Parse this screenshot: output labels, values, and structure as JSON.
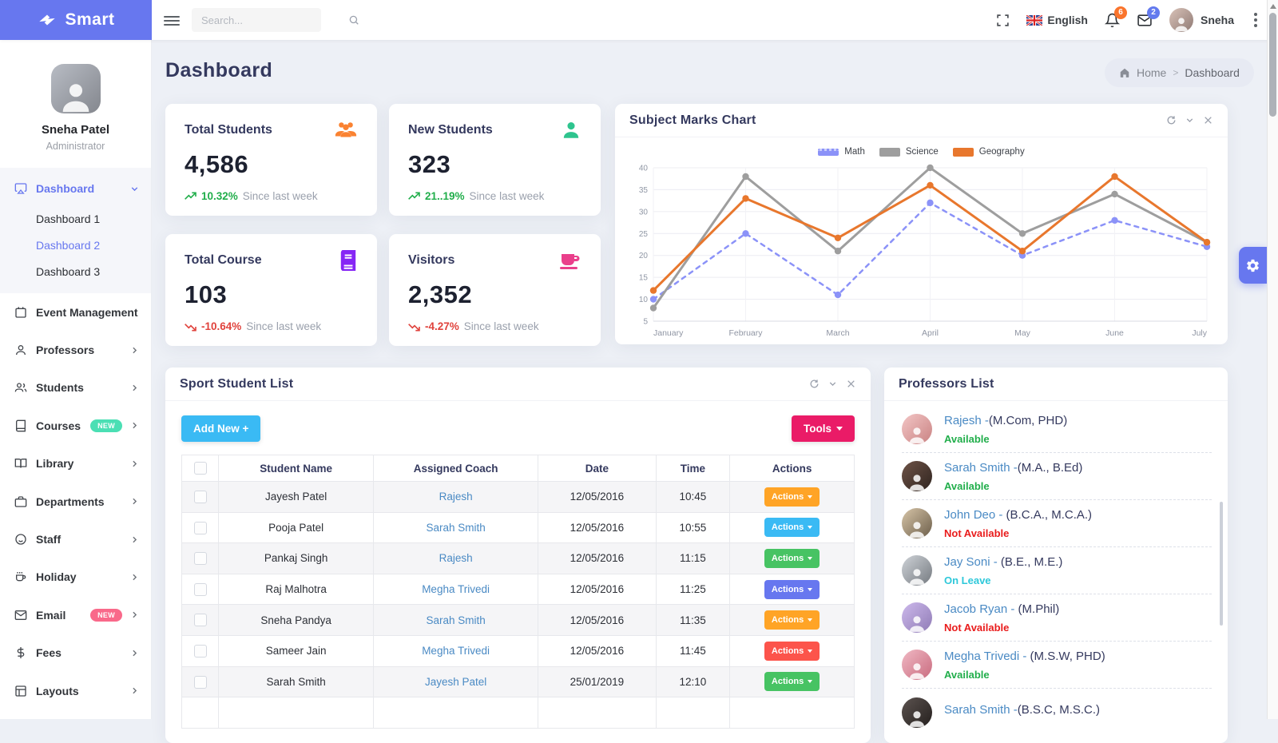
{
  "topbar": {
    "brand": "Smart",
    "search_placeholder": "Search...",
    "language": "English",
    "notif_count": "6",
    "notif_badge_color": "#fa742c",
    "message_count": "2",
    "message_badge_color": "#637aee",
    "user_name": "Sneha"
  },
  "sidebar": {
    "profile": {
      "name": "Sneha Patel",
      "role": "Administrator"
    },
    "dashboard_group": {
      "label": "Dashboard",
      "children": [
        {
          "label": "Dashboard 1",
          "active": false
        },
        {
          "label": "Dashboard 2",
          "active": true
        },
        {
          "label": "Dashboard 3",
          "active": false
        }
      ]
    },
    "items": [
      {
        "label": "Event Management",
        "icon": "calendar-icon",
        "chevron": false
      },
      {
        "label": "Professors",
        "icon": "person-icon",
        "chevron": true
      },
      {
        "label": "Students",
        "icon": "people-icon",
        "chevron": true
      },
      {
        "label": "Courses",
        "icon": "book-icon",
        "chevron": true,
        "badge": "NEW",
        "badge_color": "#4bdfb4"
      },
      {
        "label": "Library",
        "icon": "open-book-icon",
        "chevron": true
      },
      {
        "label": "Departments",
        "icon": "briefcase-icon",
        "chevron": true
      },
      {
        "label": "Staff",
        "icon": "smiley-icon",
        "chevron": true
      },
      {
        "label": "Holiday",
        "icon": "coffee-icon",
        "chevron": true
      },
      {
        "label": "Email",
        "icon": "envelope-icon",
        "chevron": true,
        "badge": "NEW",
        "badge_color": "#f9698a"
      },
      {
        "label": "Fees",
        "icon": "dollar-icon",
        "chevron": true
      },
      {
        "label": "Layouts",
        "icon": "layout-icon",
        "chevron": true
      }
    ]
  },
  "page": {
    "title": "Dashboard",
    "breadcrumb_home": "Home",
    "breadcrumb_current": "Dashboard"
  },
  "stats": [
    {
      "label": "Total Students",
      "value": "4,586",
      "trend": "10.32%",
      "suffix": "Since last week",
      "direction": "up",
      "icon": "users-group-icon",
      "icon_color": "#fa8231",
      "trend_color": "#21ae4b"
    },
    {
      "label": "New Students",
      "value": "323",
      "trend": "21..19%",
      "suffix": "Since last week",
      "direction": "up",
      "icon": "student-icon",
      "icon_color": "#2ec48e",
      "trend_color": "#21ae4b"
    },
    {
      "label": "Total Course",
      "value": "103",
      "trend": "-10.64%",
      "suffix": "Since last week",
      "direction": "down",
      "icon": "course-book-icon",
      "icon_color": "#8626f5",
      "trend_color": "#e0423c"
    },
    {
      "label": "Visitors",
      "value": "2,352",
      "trend": "-4.27%",
      "suffix": "Since last week",
      "direction": "down",
      "icon": "cup-icon",
      "icon_color": "#ea3f8b",
      "trend_color": "#e0423c"
    }
  ],
  "chart_card": {
    "title": "Subject Marks Chart"
  },
  "chart_data": {
    "type": "line",
    "title": "Subject Marks Chart",
    "x": [
      "January",
      "February",
      "March",
      "April",
      "May",
      "June",
      "July"
    ],
    "ylim": [
      5,
      40
    ],
    "ytick_step": 5,
    "grid": true,
    "legend_position": "top-center",
    "series": [
      {
        "name": "Math",
        "color": "#8b92f8",
        "dash": "5 6",
        "width": 2.5,
        "values": [
          10,
          25,
          11,
          32,
          20,
          28,
          22
        ]
      },
      {
        "name": "Science",
        "color": "#9e9e9e",
        "dash": "",
        "width": 3,
        "values": [
          8,
          38,
          21,
          40,
          25,
          34,
          23
        ]
      },
      {
        "name": "Geography",
        "color": "#e8772d",
        "dash": "",
        "width": 3,
        "values": [
          12,
          33,
          24,
          36,
          21,
          38,
          23
        ]
      }
    ]
  },
  "sport_table": {
    "title": "Sport Student List",
    "add_button": "Add New +",
    "add_button_color": "#3abaf4",
    "tools_button": "Tools",
    "tools_button_color": "#ea1b67",
    "columns": [
      "Student Name",
      "Assigned Coach",
      "Date",
      "Time",
      "Actions"
    ],
    "action_label": "Actions",
    "rows": [
      {
        "name": "Jayesh Patel",
        "coach": "Rajesh",
        "date": "12/05/2016",
        "time": "10:45",
        "action_color": "#ffa426"
      },
      {
        "name": "Pooja Patel",
        "coach": "Sarah Smith",
        "date": "12/05/2016",
        "time": "10:55",
        "action_color": "#3abaf4"
      },
      {
        "name": "Pankaj Singh",
        "coach": "Rajesh",
        "date": "12/05/2016",
        "time": "11:15",
        "action_color": "#47c363"
      },
      {
        "name": "Raj Malhotra",
        "coach": "Megha Trivedi",
        "date": "12/05/2016",
        "time": "11:25",
        "action_color": "#6777ef"
      },
      {
        "name": "Sneha Pandya",
        "coach": "Sarah Smith",
        "date": "12/05/2016",
        "time": "11:35",
        "action_color": "#ffa426"
      },
      {
        "name": "Sameer Jain",
        "coach": "Megha Trivedi",
        "date": "12/05/2016",
        "time": "11:45",
        "action_color": "#fc544b"
      },
      {
        "name": "Sarah Smith",
        "coach": "Jayesh Patel",
        "date": "25/01/2019",
        "time": "12:10",
        "action_color": "#47c363"
      }
    ]
  },
  "professors": {
    "title": "Professors List",
    "items": [
      {
        "name": "Rajesh -",
        "qual": "(M.Com, PHD)",
        "status": "Available",
        "status_color": "#21ae4b"
      },
      {
        "name": "Sarah Smith -",
        "qual": "(M.A., B.Ed)",
        "status": "Available",
        "status_color": "#21ae4b"
      },
      {
        "name": "John Deo - ",
        "qual": "(B.C.A., M.C.A.)",
        "status": "Not Available",
        "status_color": "#e91c1c"
      },
      {
        "name": "Jay Soni - ",
        "qual": "(B.E., M.E.)",
        "status": "On Leave",
        "status_color": "#2ec8da"
      },
      {
        "name": "Jacob Ryan - ",
        "qual": "(M.Phil)",
        "status": "Not Available",
        "status_color": "#e91c1c"
      },
      {
        "name": "Megha Trivedi - ",
        "qual": "(M.S.W, PHD)",
        "status": "Available",
        "status_color": "#21ae4b"
      },
      {
        "name": "Sarah Smith -",
        "qual": "(B.S.C, M.S.C.)",
        "status": "",
        "status_color": ""
      }
    ]
  },
  "colors": {
    "accent": "#6777ef",
    "link": "#4a8ac4"
  }
}
